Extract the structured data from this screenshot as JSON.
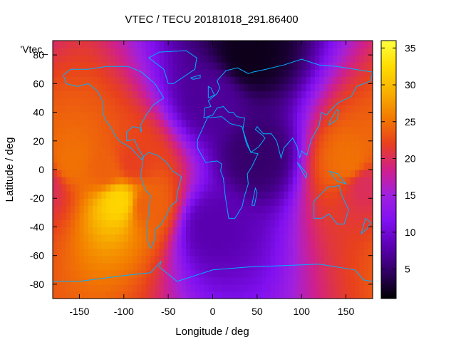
{
  "chart_data": {
    "type": "heatmap",
    "title": "VTEC / TECU 20181018_291.86400",
    "xlabel": "Longitude / deg",
    "ylabel": "Latitude / deg",
    "key_label": "'Vtec_",
    "xlim": [
      -180,
      180
    ],
    "ylim": [
      -90,
      90
    ],
    "x_ticks": [
      -150,
      -100,
      -50,
      0,
      50,
      100,
      150
    ],
    "y_ticks": [
      -80,
      -60,
      -40,
      -20,
      0,
      20,
      40,
      60,
      80
    ],
    "colorbar": {
      "range": [
        1,
        36
      ],
      "ticks": [
        5,
        10,
        15,
        20,
        25,
        30,
        35
      ],
      "palette": [
        "#000000",
        "#300060",
        "#5a00b0",
        "#8010f0",
        "#a020e0",
        "#d0208a",
        "#e8401e",
        "#f27a00",
        "#f8b000",
        "#ffdc00",
        "#ffff40"
      ]
    },
    "grid": false,
    "coastline_color": "#00b0ff",
    "regions": [
      {
        "lon": -160,
        "lat": 5,
        "vtec": 25
      },
      {
        "lon": -120,
        "lat": 0,
        "vtec": 24
      },
      {
        "lon": -90,
        "lat": 5,
        "vtec": 22
      },
      {
        "lon": -105,
        "lat": -22,
        "vtec": 32
      },
      {
        "lon": -75,
        "lat": -25,
        "vtec": 24
      },
      {
        "lon": 155,
        "lat": 5,
        "vtec": 25
      },
      {
        "lon": 172,
        "lat": -10,
        "vtec": 20
      },
      {
        "lon": 50,
        "lat": 10,
        "vtec": 5
      },
      {
        "lon": 40,
        "lat": 80,
        "vtec": 2
      },
      {
        "lon": 0,
        "lat": -40,
        "vtec": 8
      },
      {
        "lon": 0,
        "lat": 50,
        "vtec": 7
      }
    ]
  }
}
